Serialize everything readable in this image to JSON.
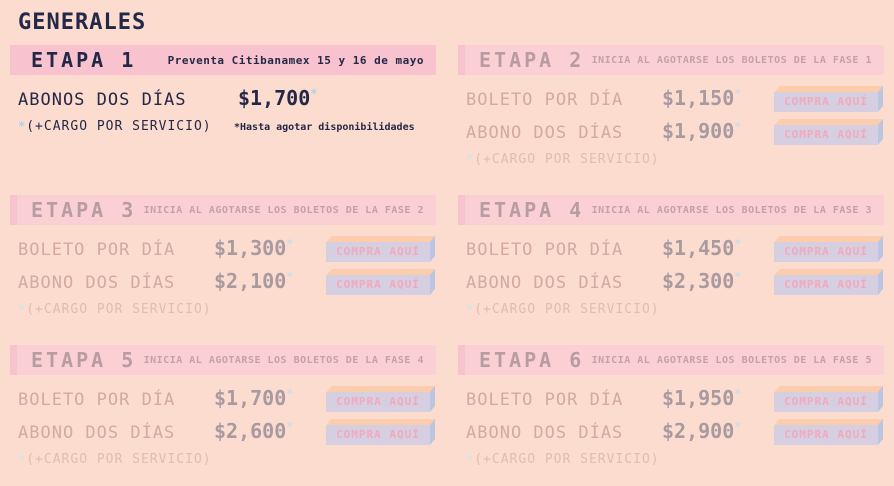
{
  "page_title": "GENERALES",
  "theme": {
    "background": "#fcdccf",
    "navy_text": "#232848",
    "active_band_pink": "#f8c3ce",
    "faded_band_pink": "#fbd0d5",
    "asterisk_blue": "#a9d4eb",
    "faded_text": "#d4a9a4",
    "faded_price": "#a89aa0",
    "button_face": "#d6cfe1",
    "button_text_pink": "#f3a9bc",
    "button_top_peach": "#fbcdad",
    "button_side_blue": "#bcc6e0"
  },
  "sections": [
    {
      "title": "ETAPA 1",
      "subtitle": "Preventa Citibanamex 15 y 16 de mayo",
      "state": "active",
      "rows": [
        {
          "label": "ABONOS DOS DÍAS",
          "price": "$1,700",
          "asterisk": "*"
        }
      ],
      "note_symbol": "*",
      "service_note": "(+CARGO POR SERVICIO)",
      "availability_note": "*Hasta agotar disponibilidades"
    },
    {
      "title": "ETAPA 2",
      "subtitle": "INICIA AL AGOTARSE LOS BOLETOS DE LA FASE 1",
      "state": "faded",
      "rows": [
        {
          "label": "BOLETO POR DÍA",
          "price": "$1,150",
          "asterisk": "*",
          "button": "COMPRA AQUÍ"
        },
        {
          "label": "ABONO DOS DÍAS",
          "price": "$1,900",
          "asterisk": "*",
          "button": "COMPRA AQUÍ"
        }
      ],
      "note_symbol": "*",
      "service_note": "(+CARGO POR SERVICIO)"
    },
    {
      "title": "ETAPA 3",
      "subtitle": "INICIA AL AGOTARSE LOS BOLETOS DE LA FASE 2",
      "state": "faded",
      "rows": [
        {
          "label": "BOLETO POR DÍA",
          "price": "$1,300",
          "asterisk": "*",
          "button": "COMPRA AQUÍ"
        },
        {
          "label": "ABONO DOS DÍAS",
          "price": "$2,100",
          "asterisk": "*",
          "button": "COMPRA AQUÍ"
        }
      ],
      "note_symbol": "*",
      "service_note": "(+CARGO POR SERVICIO)"
    },
    {
      "title": "ETAPA 4",
      "subtitle": "INICIA AL AGOTARSE LOS BOLETOS DE LA FASE 3",
      "state": "faded",
      "rows": [
        {
          "label": "BOLETO POR DÍA",
          "price": "$1,450",
          "asterisk": "*",
          "button": "COMPRA AQUÍ"
        },
        {
          "label": "ABONO DOS DÍAS",
          "price": "$2,300",
          "asterisk": "*",
          "button": "COMPRA AQUÍ"
        }
      ],
      "note_symbol": "*",
      "service_note": "(+CARGO POR SERVICIO)"
    },
    {
      "title": "ETAPA 5",
      "subtitle": "INICIA AL AGOTARSE LOS BOLETOS DE LA FASE 4",
      "state": "faded",
      "rows": [
        {
          "label": "BOLETO POR DÍA",
          "price": "$1,700",
          "asterisk": "*",
          "button": "COMPRA AQUÍ"
        },
        {
          "label": "ABONO DOS DÍAS",
          "price": "$2,600",
          "asterisk": "*",
          "button": "COMPRA AQUÍ"
        }
      ],
      "note_symbol": "*",
      "service_note": "(+CARGO POR SERVICIO)"
    },
    {
      "title": "ETAPA 6",
      "subtitle": "INICIA AL AGOTARSE LOS BOLETOS DE LA FASE 5",
      "state": "faded",
      "rows": [
        {
          "label": "BOLETO POR DÍA",
          "price": "$1,950",
          "asterisk": "*",
          "button": "COMPRA AQUÍ"
        },
        {
          "label": "ABONO DOS DÍAS",
          "price": "$2,900",
          "asterisk": "*",
          "button": "COMPRA AQUÍ"
        }
      ],
      "note_symbol": "*",
      "service_note": "(+CARGO POR SERVICIO)"
    }
  ]
}
